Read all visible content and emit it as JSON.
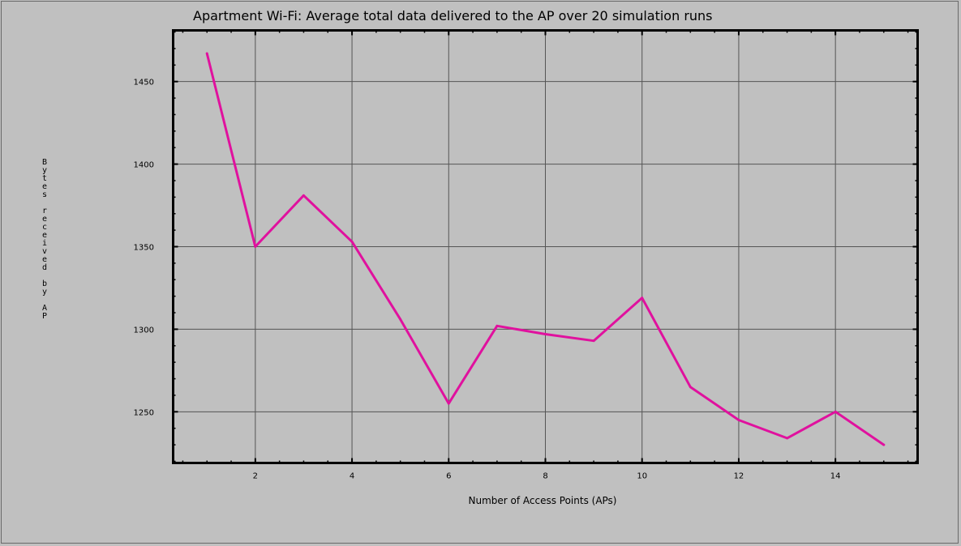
{
  "chart_data": {
    "type": "line",
    "title": "Apartment Wi-Fi: Average total data delivered to the AP over 20 simulation runs",
    "xlabel": "Number of Access Points (APs)",
    "ylabel": "Bytes received by AP",
    "xlim": [
      0.3,
      15.7
    ],
    "ylim": [
      1219,
      1481
    ],
    "xticks": [
      2,
      4,
      6,
      8,
      10,
      12,
      14
    ],
    "yticks": [
      1250,
      1300,
      1350,
      1400,
      1450
    ],
    "grid": true,
    "series": [
      {
        "color": "#e0119e",
        "x": [
          1,
          2,
          3,
          4,
          5,
          6,
          7,
          8,
          9,
          10,
          11,
          12,
          13,
          14,
          15
        ],
        "y": [
          1467,
          1350,
          1381,
          1353,
          1306,
          1255,
          1302,
          1297,
          1293,
          1319,
          1265,
          1245,
          1234,
          1250,
          1230
        ]
      }
    ]
  }
}
